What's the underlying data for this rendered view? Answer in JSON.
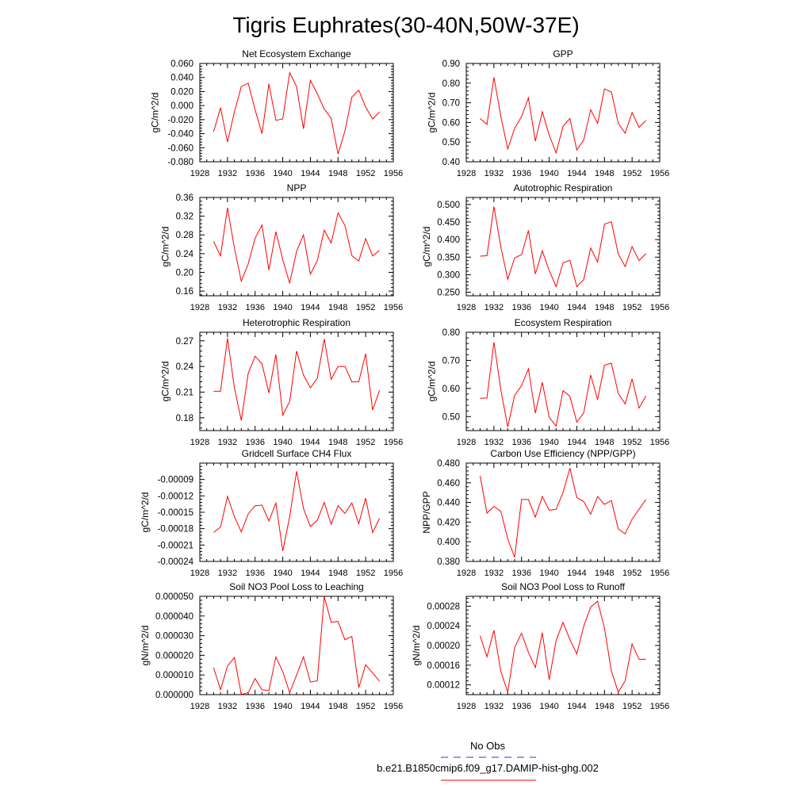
{
  "title": "Tigris Euphrates(30-40N,50W-37E)",
  "legend": {
    "items": [
      {
        "label": "No Obs",
        "color": "#3333cc",
        "dash": true
      },
      {
        "label": "b.e21.B1850cmip6.f09_g17.DAMIP-hist-ghg.002",
        "color": "#ff0000",
        "dash": false
      }
    ]
  },
  "chart_data": [
    {
      "type": "line",
      "title": "Net Ecosystem Exchange",
      "xlabel": "",
      "ylabel": "gC/m^2/d",
      "xlim": [
        1928,
        1956
      ],
      "ylim": [
        -0.08,
        0.06
      ],
      "xticks": [
        "1928",
        "1932",
        "1936",
        "1940",
        "1944",
        "1948",
        "1952",
        "1956"
      ],
      "yticks": [
        "-0.080",
        "-0.060",
        "-0.040",
        "-0.020",
        "0.000",
        "0.020",
        "0.040",
        "0.060"
      ],
      "series": [
        {
          "x": [
            1930,
            1931,
            1932,
            1933,
            1934,
            1935,
            1936,
            1937,
            1938,
            1939,
            1940,
            1941,
            1942,
            1943,
            1944,
            1945,
            1946,
            1947,
            1948,
            1949,
            1950,
            1951,
            1952,
            1953,
            1954
          ],
          "values": [
            -0.037,
            -0.003,
            -0.052,
            -0.009,
            0.027,
            0.032,
            -0.006,
            -0.04,
            0.031,
            -0.021,
            -0.019,
            0.047,
            0.027,
            -0.033,
            0.036,
            0.017,
            -0.005,
            -0.018,
            -0.069,
            -0.036,
            0.012,
            0.022,
            -0.002,
            -0.019,
            -0.009
          ]
        }
      ]
    },
    {
      "type": "line",
      "title": "GPP",
      "xlabel": "",
      "ylabel": "gC/m^2/d",
      "xlim": [
        1928,
        1956
      ],
      "ylim": [
        0.4,
        0.9
      ],
      "xticks": [
        "1928",
        "1932",
        "1936",
        "1940",
        "1944",
        "1948",
        "1952",
        "1956"
      ],
      "yticks": [
        "0.40",
        "0.50",
        "0.60",
        "0.70",
        "0.80",
        "0.90"
      ],
      "series": [
        {
          "x": [
            1930,
            1931,
            1932,
            1933,
            1934,
            1935,
            1936,
            1937,
            1938,
            1939,
            1940,
            1941,
            1942,
            1943,
            1944,
            1945,
            1946,
            1947,
            1948,
            1949,
            1950,
            1951,
            1952,
            1953,
            1954
          ],
          "values": [
            0.62,
            0.59,
            0.83,
            0.63,
            0.465,
            0.57,
            0.63,
            0.725,
            0.505,
            0.655,
            0.535,
            0.445,
            0.58,
            0.62,
            0.46,
            0.51,
            0.665,
            0.595,
            0.77,
            0.755,
            0.595,
            0.545,
            0.65,
            0.575,
            0.61
          ]
        }
      ]
    },
    {
      "type": "line",
      "title": "NPP",
      "xlabel": "",
      "ylabel": "gC/m^2/d",
      "xlim": [
        1928,
        1956
      ],
      "ylim": [
        0.15,
        0.36
      ],
      "xticks": [
        "1928",
        "1932",
        "1936",
        "1940",
        "1944",
        "1948",
        "1952",
        "1956"
      ],
      "yticks": [
        "0.16",
        "0.20",
        "0.24",
        "0.28",
        "0.32",
        "0.36"
      ],
      "series": [
        {
          "x": [
            1930,
            1931,
            1932,
            1933,
            1934,
            1935,
            1936,
            1937,
            1938,
            1939,
            1940,
            1941,
            1942,
            1943,
            1944,
            1945,
            1946,
            1947,
            1948,
            1949,
            1950,
            1951,
            1952,
            1953,
            1954
          ],
          "values": [
            0.266,
            0.235,
            0.338,
            0.252,
            0.181,
            0.218,
            0.273,
            0.301,
            0.205,
            0.287,
            0.227,
            0.177,
            0.245,
            0.28,
            0.196,
            0.225,
            0.29,
            0.263,
            0.327,
            0.3,
            0.236,
            0.224,
            0.272,
            0.235,
            0.247
          ]
        }
      ]
    },
    {
      "type": "line",
      "title": "Autotrophic Respiration",
      "xlabel": "",
      "ylabel": "gC/m^2/d",
      "xlim": [
        1928,
        1956
      ],
      "ylim": [
        0.24,
        0.52
      ],
      "xticks": [
        "1928",
        "1932",
        "1936",
        "1940",
        "1944",
        "1948",
        "1952",
        "1956"
      ],
      "yticks": [
        "0.250",
        "0.300",
        "0.350",
        "0.400",
        "0.450",
        "0.500"
      ],
      "series": [
        {
          "x": [
            1930,
            1931,
            1932,
            1933,
            1934,
            1935,
            1936,
            1937,
            1938,
            1939,
            1940,
            1941,
            1942,
            1943,
            1944,
            1945,
            1946,
            1947,
            1948,
            1949,
            1950,
            1951,
            1952,
            1953,
            1954
          ],
          "values": [
            0.353,
            0.354,
            0.494,
            0.379,
            0.287,
            0.348,
            0.357,
            0.426,
            0.302,
            0.368,
            0.312,
            0.266,
            0.334,
            0.341,
            0.266,
            0.286,
            0.376,
            0.336,
            0.444,
            0.451,
            0.359,
            0.323,
            0.38,
            0.34,
            0.36
          ]
        }
      ]
    },
    {
      "type": "line",
      "title": "Heterotrophic Respiration",
      "xlabel": "",
      "ylabel": "gC/m^2/d",
      "xlim": [
        1928,
        1956
      ],
      "ylim": [
        0.165,
        0.28
      ],
      "xticks": [
        "1928",
        "1932",
        "1936",
        "1940",
        "1944",
        "1948",
        "1952",
        "1956"
      ],
      "yticks": [
        "0.18",
        "0.21",
        "0.24",
        "0.27"
      ],
      "series": [
        {
          "x": [
            1930,
            1931,
            1932,
            1933,
            1934,
            1935,
            1936,
            1937,
            1938,
            1939,
            1940,
            1941,
            1942,
            1943,
            1944,
            1945,
            1946,
            1947,
            1948,
            1949,
            1950,
            1951,
            1952,
            1953,
            1954
          ],
          "values": [
            0.211,
            0.211,
            0.273,
            0.215,
            0.177,
            0.232,
            0.252,
            0.243,
            0.209,
            0.254,
            0.183,
            0.199,
            0.258,
            0.23,
            0.215,
            0.226,
            0.272,
            0.225,
            0.24,
            0.24,
            0.222,
            0.222,
            0.255,
            0.189,
            0.212
          ]
        }
      ]
    },
    {
      "type": "line",
      "title": "Ecosystem Respiration",
      "xlabel": "",
      "ylabel": "gC/m^2/d",
      "xlim": [
        1928,
        1956
      ],
      "ylim": [
        0.45,
        0.8
      ],
      "xticks": [
        "1928",
        "1932",
        "1936",
        "1940",
        "1944",
        "1948",
        "1952",
        "1956"
      ],
      "yticks": [
        "0.50",
        "0.60",
        "0.70",
        "0.80"
      ],
      "series": [
        {
          "x": [
            1930,
            1931,
            1932,
            1933,
            1934,
            1935,
            1936,
            1937,
            1938,
            1939,
            1940,
            1941,
            1942,
            1943,
            1944,
            1945,
            1946,
            1947,
            1948,
            1949,
            1950,
            1951,
            1952,
            1953,
            1954
          ],
          "values": [
            0.565,
            0.566,
            0.765,
            0.595,
            0.463,
            0.575,
            0.61,
            0.67,
            0.512,
            0.622,
            0.497,
            0.466,
            0.592,
            0.572,
            0.48,
            0.513,
            0.648,
            0.56,
            0.683,
            0.69,
            0.582,
            0.545,
            0.634,
            0.53,
            0.573
          ]
        }
      ]
    },
    {
      "type": "line",
      "title": "Gridcell Surface CH4 Flux",
      "xlabel": "",
      "ylabel": "gC/m^2/d",
      "xlim": [
        1928,
        1956
      ],
      "ylim": [
        -0.00024,
        -6e-05
      ],
      "xticks": [
        "1928",
        "1932",
        "1936",
        "1940",
        "1944",
        "1948",
        "1952",
        "1956"
      ],
      "yticks": [
        "-0.00024",
        "-0.00021",
        "-0.00018",
        "-0.00015",
        "-0.00012",
        "-0.00009"
      ],
      "series": [
        {
          "x": [
            1930,
            1931,
            1932,
            1933,
            1934,
            1935,
            1936,
            1937,
            1938,
            1939,
            1940,
            1941,
            1942,
            1943,
            1944,
            1945,
            1946,
            1947,
            1948,
            1949,
            1950,
            1951,
            1952,
            1953,
            1954
          ],
          "values": [
            -0.000187,
            -0.000177,
            -0.000121,
            -0.000158,
            -0.000186,
            -0.000153,
            -0.000138,
            -0.000137,
            -0.000166,
            -0.000133,
            -0.000221,
            -0.000158,
            -7.5e-05,
            -0.000143,
            -0.000176,
            -0.000165,
            -0.000132,
            -0.000172,
            -0.000138,
            -0.000152,
            -0.000133,
            -0.000171,
            -0.000124,
            -0.000187,
            -0.000161
          ]
        }
      ]
    },
    {
      "type": "line",
      "title": "Carbon Use Efficiency (NPP/GPP)",
      "xlabel": "",
      "ylabel": "NPP/GPP",
      "xlim": [
        1928,
        1956
      ],
      "ylim": [
        0.38,
        0.48
      ],
      "xticks": [
        "1928",
        "1932",
        "1936",
        "1940",
        "1944",
        "1948",
        "1952",
        "1956"
      ],
      "yticks": [
        "0.380",
        "0.400",
        "0.420",
        "0.440",
        "0.460",
        "0.480"
      ],
      "series": [
        {
          "x": [
            1930,
            1931,
            1932,
            1933,
            1934,
            1935,
            1936,
            1937,
            1938,
            1939,
            1940,
            1941,
            1942,
            1943,
            1944,
            1945,
            1946,
            1947,
            1948,
            1949,
            1950,
            1951,
            1952,
            1953,
            1954
          ],
          "values": [
            0.467,
            0.429,
            0.436,
            0.431,
            0.403,
            0.384,
            0.443,
            0.443,
            0.425,
            0.446,
            0.432,
            0.433,
            0.45,
            0.475,
            0.445,
            0.441,
            0.428,
            0.446,
            0.438,
            0.442,
            0.413,
            0.408,
            0.423,
            0.433,
            0.443
          ]
        }
      ]
    },
    {
      "type": "line",
      "title": "Soil NO3 Pool Loss to Leaching",
      "xlabel": "",
      "ylabel": "gN/m^2/d",
      "xlim": [
        1928,
        1956
      ],
      "ylim": [
        0,
        5e-05
      ],
      "xticks": [
        "1928",
        "1932",
        "1936",
        "1940",
        "1944",
        "1948",
        "1952",
        "1956"
      ],
      "yticks": [
        "0.000000",
        "0.000010",
        "0.000020",
        "0.000030",
        "0.000040",
        "0.000050"
      ],
      "series": [
        {
          "x": [
            1930,
            1931,
            1932,
            1933,
            1934,
            1935,
            1936,
            1937,
            1938,
            1939,
            1940,
            1941,
            1942,
            1943,
            1944,
            1945,
            1946,
            1947,
            1948,
            1949,
            1950,
            1951,
            1952,
            1953,
            1954
          ],
          "values": [
            1.37e-05,
            2.5e-06,
            1.45e-05,
            1.89e-05,
            1e-07,
            1e-06,
            8.2e-06,
            2.5e-06,
            2e-06,
            1.92e-05,
            1.17e-05,
            1e-06,
            9.9e-06,
            1.92e-05,
            6.4e-06,
            7e-06,
            4.98e-05,
            3.68e-05,
            3.72e-05,
            2.79e-05,
            2.96e-05,
            3.5e-06,
            1.52e-05,
            1.1e-05,
            6.8e-06
          ]
        }
      ]
    },
    {
      "type": "line",
      "title": "Soil NO3 Pool Loss to Runoff",
      "xlabel": "",
      "ylabel": "gN/m^2/d",
      "xlim": [
        1928,
        1956
      ],
      "ylim": [
        0.0001,
        0.0003
      ],
      "xticks": [
        "1928",
        "1932",
        "1936",
        "1940",
        "1944",
        "1948",
        "1952",
        "1956"
      ],
      "yticks": [
        "0.00012",
        "0.00016",
        "0.00020",
        "0.00024",
        "0.00028"
      ],
      "series": [
        {
          "x": [
            1930,
            1931,
            1932,
            1933,
            1934,
            1935,
            1936,
            1937,
            1938,
            1939,
            1940,
            1941,
            1942,
            1943,
            1944,
            1945,
            1946,
            1947,
            1948,
            1949,
            1950,
            1951,
            1952,
            1953,
            1954
          ],
          "values": [
            0.00022,
            0.000177,
            0.000231,
            0.000147,
            0.000105,
            0.000196,
            0.000225,
            0.000186,
            0.000155,
            0.000226,
            0.00013,
            0.00021,
            0.000247,
            0.000212,
            0.000183,
            0.000239,
            0.000278,
            0.00029,
            0.000235,
            0.000148,
            0.000105,
            0.000128,
            0.000203,
            0.000172,
            0.000172
          ]
        }
      ]
    }
  ]
}
